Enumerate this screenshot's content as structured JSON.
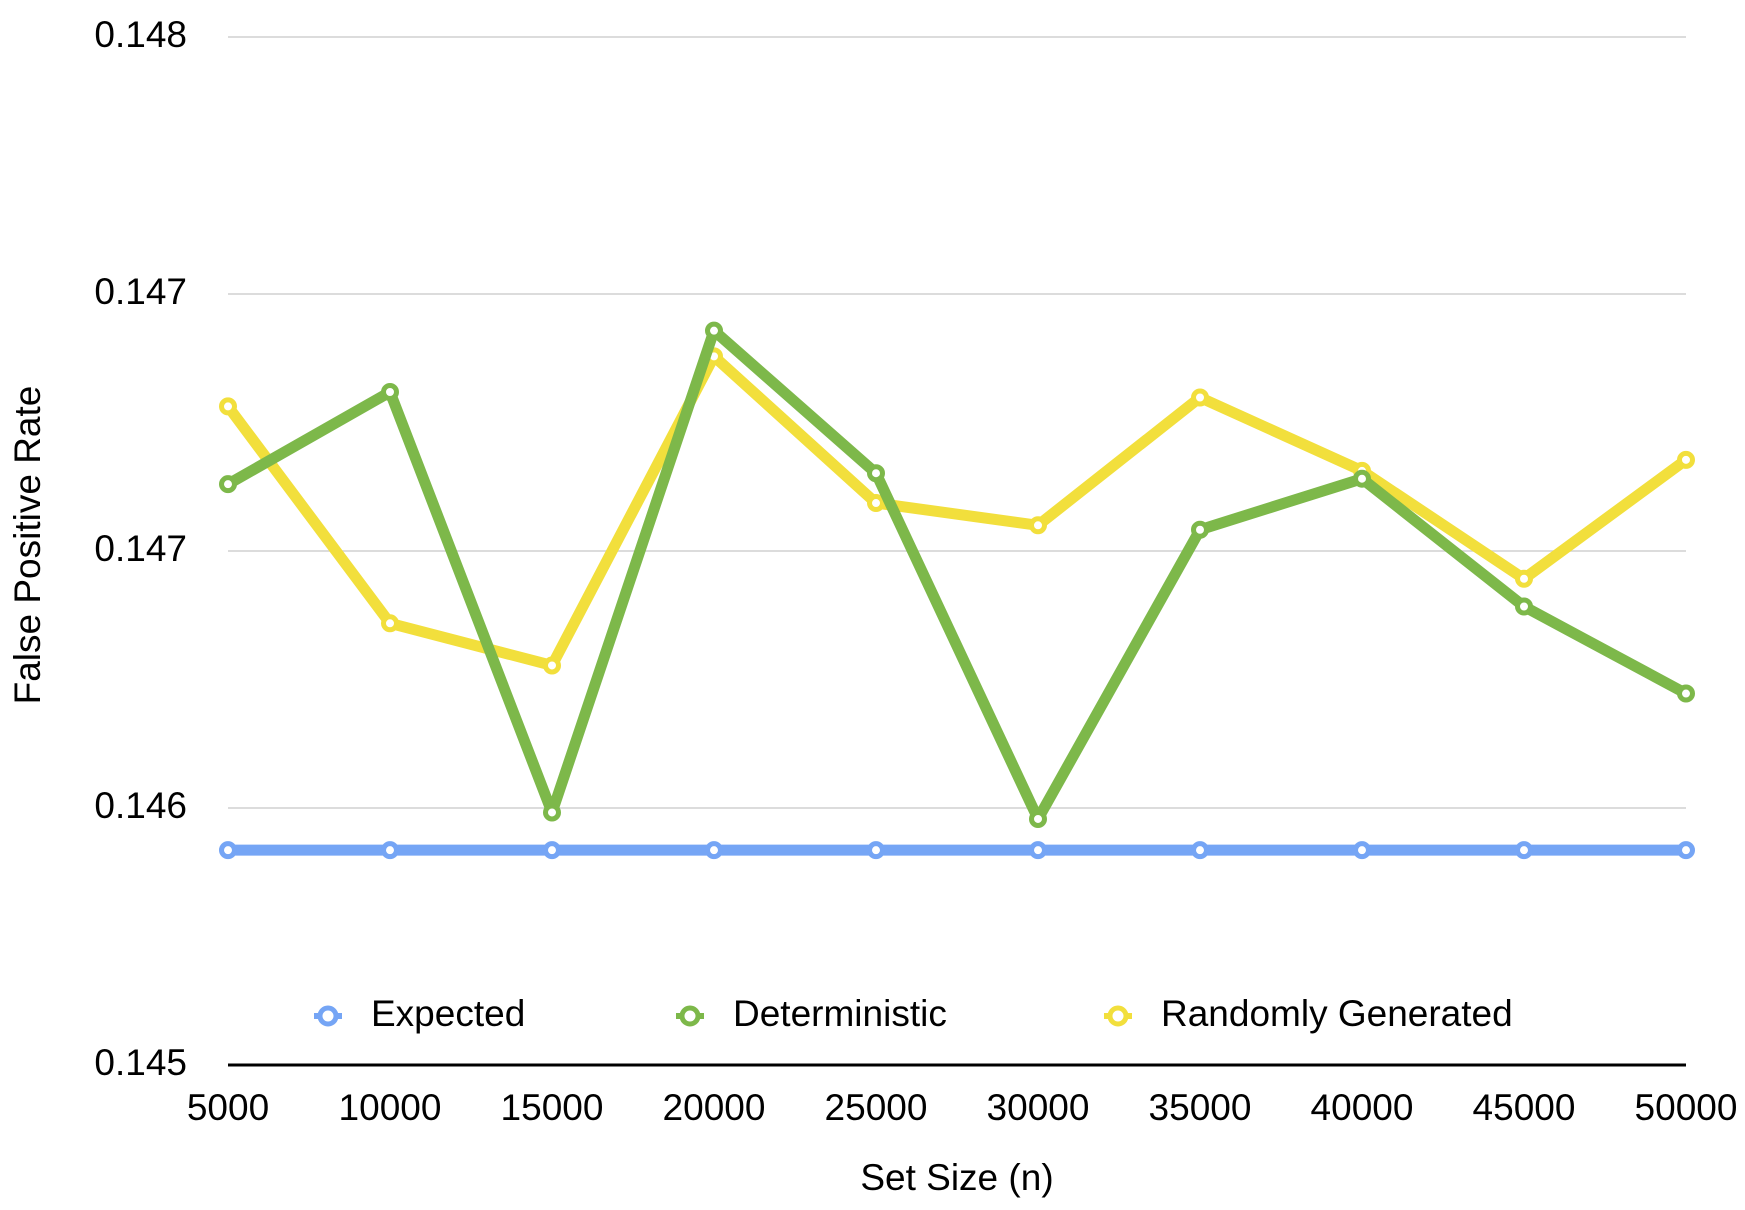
{
  "chart_data": {
    "type": "line",
    "xlabel": "Set Size (n)",
    "ylabel": "False Positive Rate",
    "x": [
      5000,
      10000,
      15000,
      20000,
      25000,
      30000,
      35000,
      40000,
      45000,
      50000
    ],
    "series": [
      {
        "name": "Expected",
        "color": "#75a5f5",
        "values": [
          0.145627,
          0.145627,
          0.145627,
          0.145627,
          0.145627,
          0.145627,
          0.145627,
          0.145627,
          0.145627,
          0.145627
        ]
      },
      {
        "name": "Deterministic",
        "color": "#7db84a",
        "values": [
          0.146695,
          0.146964,
          0.145737,
          0.147143,
          0.146727,
          0.145718,
          0.146562,
          0.146711,
          0.146338,
          0.146084
        ]
      },
      {
        "name": "Randomly Generated",
        "color": "#f2df3c",
        "values": [
          0.146922,
          0.146289,
          0.146166,
          0.147068,
          0.14664,
          0.146575,
          0.146948,
          0.146734,
          0.146419,
          0.146766
        ]
      }
    ],
    "xlim": [
      5000,
      50000
    ],
    "xticks": [
      5000,
      10000,
      15000,
      20000,
      25000,
      30000,
      35000,
      40000,
      45000,
      50000
    ],
    "ylim": [
      0.145,
      0.148
    ],
    "yticks": [
      0.145,
      {
        "value": 0.14575,
        "label": "0.146"
      },
      {
        "value": 0.1465,
        "label": "0.147"
      },
      {
        "value": 0.14725,
        "label": "0.147"
      },
      0.148
    ],
    "grid": true,
    "legend": "bottom"
  }
}
